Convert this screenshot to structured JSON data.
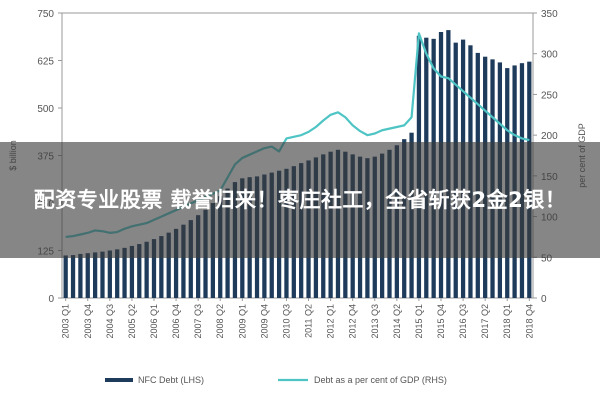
{
  "overlay": {
    "headline": "配资专业股票 载誉归来！枣庄社工，全省斩获2金2银！"
  },
  "chart_data": {
    "type": "bar+line",
    "categories": [
      "2003 Q1",
      "2003 Q2",
      "2003 Q3",
      "2003 Q4",
      "2004 Q1",
      "2004 Q2",
      "2004 Q3",
      "2004 Q4",
      "2005 Q1",
      "2005 Q2",
      "2005 Q3",
      "2005 Q4",
      "2006 Q1",
      "2006 Q2",
      "2006 Q3",
      "2006 Q4",
      "2007 Q1",
      "2007 Q2",
      "2007 Q3",
      "2007 Q4",
      "2008 Q1",
      "2008 Q2",
      "2008 Q3",
      "2008 Q4",
      "2009 Q1",
      "2009 Q2",
      "2009 Q3",
      "2009 Q4",
      "2010 Q1",
      "2010 Q2",
      "2010 Q3",
      "2010 Q4",
      "2011 Q1",
      "2011 Q2",
      "2011 Q3",
      "2011 Q4",
      "2012 Q1",
      "2012 Q2",
      "2012 Q3",
      "2012 Q4",
      "2013 Q1",
      "2013 Q2",
      "2013 Q3",
      "2013 Q4",
      "2014 Q1",
      "2014 Q2",
      "2014 Q3",
      "2014 Q4",
      "2015 Q1",
      "2015 Q2",
      "2015 Q3",
      "2015 Q4",
      "2016 Q1",
      "2016 Q2",
      "2016 Q3",
      "2016 Q4",
      "2017 Q1",
      "2017 Q2",
      "2017 Q3",
      "2017 Q4",
      "2018 Q1",
      "2018 Q2",
      "2018 Q3",
      "2018 Q4"
    ],
    "tick_labels": [
      "2003 Q1",
      "2003 Q4",
      "2004 Q3",
      "2005 Q2",
      "2006 Q1",
      "2006 Q4",
      "2007 Q3",
      "2008 Q2",
      "2009 Q1",
      "2009 Q4",
      "2010 Q3",
      "2011 Q2",
      "2012 Q1",
      "2012 Q4",
      "2013 Q3",
      "2014 Q2",
      "2015 Q1",
      "2015 Q4",
      "2016 Q3",
      "2017 Q2",
      "2018 Q1",
      "2018 Q4"
    ],
    "series": [
      {
        "name": "NFC Debt (LHS)",
        "type": "bar",
        "axis": "left",
        "color": "#1f3b5c",
        "values": [
          112,
          113,
          116,
          118,
          120,
          122,
          125,
          128,
          132,
          137,
          142,
          148,
          155,
          163,
          172,
          182,
          193,
          205,
          218,
          232,
          250,
          268,
          288,
          305,
          315,
          318,
          320,
          325,
          330,
          335,
          340,
          347,
          355,
          362,
          370,
          378,
          385,
          390,
          385,
          378,
          372,
          368,
          372,
          380,
          390,
          402,
          418,
          435,
          690,
          685,
          682,
          700,
          705,
          672,
          680,
          665,
          645,
          635,
          628,
          620,
          605,
          612,
          618,
          622
        ]
      },
      {
        "name": "Debt as a per cent of GDP (RHS)",
        "type": "line",
        "axis": "right",
        "color": "#4fc4c4",
        "values": [
          75,
          76,
          78,
          80,
          83,
          82,
          80,
          81,
          85,
          88,
          90,
          92,
          96,
          100,
          104,
          108,
          112,
          116,
          120,
          124,
          128,
          132,
          148,
          164,
          172,
          176,
          180,
          184,
          186,
          180,
          196,
          198,
          200,
          204,
          210,
          218,
          225,
          228,
          222,
          212,
          205,
          200,
          202,
          206,
          208,
          210,
          212,
          222,
          325,
          300,
          282,
          272,
          270,
          262,
          254,
          246,
          238,
          230,
          222,
          214,
          206,
          200,
          196,
          194
        ]
      }
    ],
    "y_left": {
      "min": 0,
      "max": 750,
      "ticks": [
        0,
        125,
        250,
        375,
        500,
        625,
        750
      ],
      "label": "$ billion"
    },
    "y_right": {
      "min": 0,
      "max": 350,
      "ticks": [
        0,
        50,
        100,
        150,
        200,
        250,
        300,
        350
      ],
      "label": "per cent of GDP"
    },
    "grid": false,
    "legend_position": "bottom"
  }
}
